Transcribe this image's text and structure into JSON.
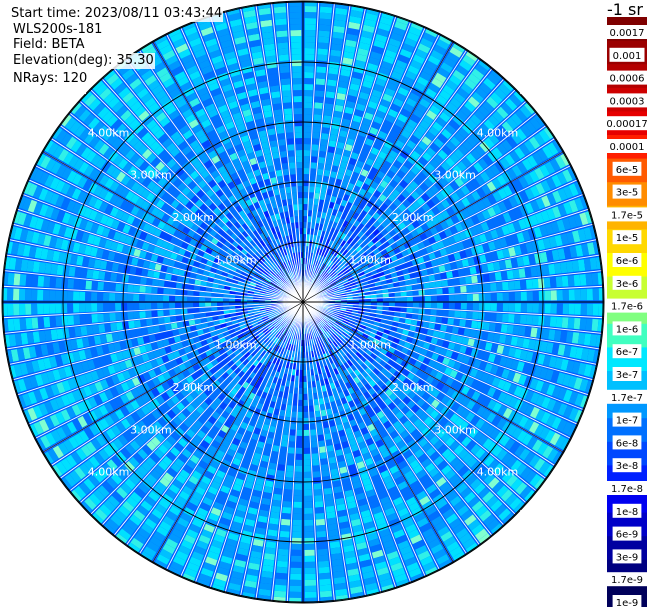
{
  "info": {
    "start_time": "Start time: 2023/08/11 03:43:44",
    "instrument": "WLS200s-181",
    "field": "Field: BETA",
    "elevation": "Elevation(deg): 35.30",
    "nrays": "NRays: 120"
  },
  "chart_data": {
    "type": "heatmap",
    "projection": "polar-ppi",
    "field": "BETA",
    "elevation_deg": 35.3,
    "n_rays": 120,
    "range_rings_km": [
      1,
      2,
      3,
      4,
      5
    ],
    "range_ring_labels": [
      "1.00km",
      "2.00km",
      "3.00km",
      "4.00km",
      "5.00km"
    ],
    "spokes_deg": [
      0,
      30,
      60,
      90,
      120,
      150,
      180,
      210,
      240,
      270,
      300,
      330
    ],
    "colorbar": {
      "unit_label": "-1 sr",
      "tick_labels": [
        "0.0017",
        "0.001",
        "0.0006",
        "0.0003",
        "0.00017",
        "0.0001",
        "6e-5",
        "3e-5",
        "1.7e-5",
        "1e-5",
        "6e-6",
        "3e-6",
        "1.7e-6",
        "1e-6",
        "6e-7",
        "3e-7",
        "1.7e-7",
        "1e-7",
        "6e-8",
        "3e-8",
        "1.7e-8",
        "1e-8",
        "6e-9",
        "3e-9",
        "1.7e-9",
        "1e-9"
      ],
      "colors": [
        "#7f0000",
        "#9a0000",
        "#b40000",
        "#ce0000",
        "#e60000",
        "#ff1e00",
        "#ff5a00",
        "#ff8c00",
        "#ffb400",
        "#ffd800",
        "#ffff00",
        "#c8ff32",
        "#80ff80",
        "#40ffc0",
        "#00e8ff",
        "#00c0ff",
        "#0098ff",
        "#0070ff",
        "#0048ff",
        "#0020ff",
        "#0000f0",
        "#0000c8",
        "#0000a0",
        "#000080",
        "#00005a"
      ]
    }
  }
}
